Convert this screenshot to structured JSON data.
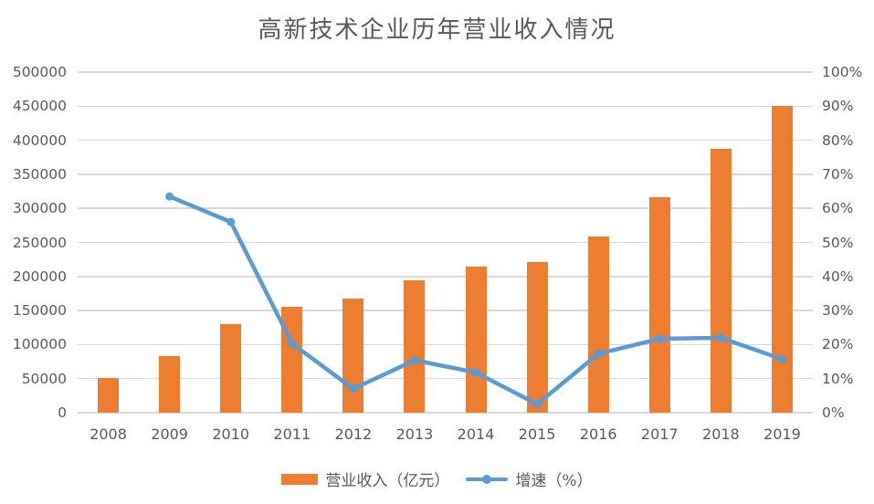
{
  "chart_data": {
    "type": "combo-bar-line",
    "title": "高新技术企业历年营业收入情况",
    "categories": [
      "2008",
      "2009",
      "2010",
      "2011",
      "2012",
      "2013",
      "2014",
      "2015",
      "2016",
      "2017",
      "2018",
      "2019"
    ],
    "series": [
      {
        "name": "营业收入（亿元）",
        "type": "bar",
        "axis": "left",
        "color": "#ED7D31",
        "values": [
          51000,
          83000,
          130000,
          156000,
          167000,
          194000,
          215000,
          221000,
          259000,
          317000,
          388000,
          450000
        ]
      },
      {
        "name": "增速（%）",
        "type": "line",
        "axis": "right",
        "color": "#5B9BD5",
        "values": [
          null,
          63.5,
          56,
          20.3,
          7,
          15.4,
          11.8,
          2.5,
          17.3,
          21.7,
          22,
          15.7
        ]
      }
    ],
    "left_axis": {
      "min": 0,
      "max": 500000,
      "step": 50000,
      "ticks": [
        "0",
        "50000",
        "100000",
        "150000",
        "200000",
        "250000",
        "300000",
        "350000",
        "400000",
        "450000",
        "500000"
      ]
    },
    "right_axis": {
      "min": 0,
      "max": 100,
      "step": 10,
      "ticks": [
        "0%",
        "10%",
        "20%",
        "30%",
        "40%",
        "50%",
        "60%",
        "70%",
        "80%",
        "90%",
        "100%"
      ]
    },
    "grid": true,
    "legend_position": "bottom",
    "background": "#FFFFFF",
    "gridline_color": "#D9D9D9",
    "text_color": "#595959"
  }
}
